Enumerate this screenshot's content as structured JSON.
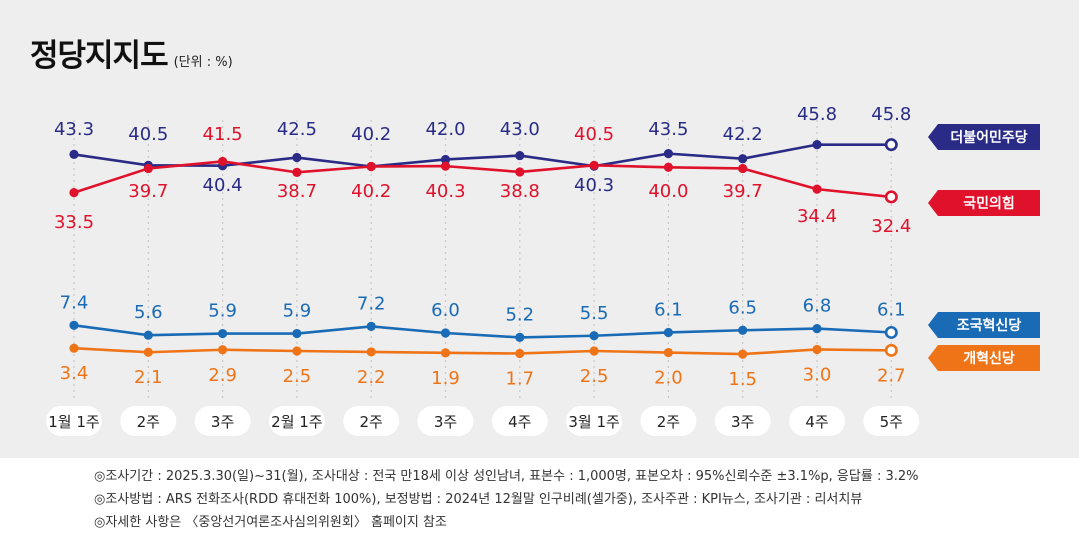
{
  "title": "정당지지도",
  "unit_note": "(단위 : %)",
  "notes": [
    "◎조사기간 : 2025.3.30(일)~31(월), 조사대상 : 전국 만18세 이상 성인남녀, 표본수 : 1,000명, 표본오차 : 95%신뢰수준 ±3.1%p, 응답률 : 3.2%",
    "◎조사방법 : ARS 전화조사(RDD 휴대전화 100%), 보정방법 : 2024년 12월말 인구비례(셀가중), 조사주관 : KPI뉴스, 조사기관 : 리서치뷰",
    "◎자세한 사항은 〈중앙선거여론조사심의위원회〉 홈페이지 참조"
  ],
  "chart_data": {
    "type": "line",
    "title": "정당지지도",
    "categories": [
      "1월 1주",
      "2주",
      "3주",
      "2월 1주",
      "2주",
      "3주",
      "4주",
      "3월 1주",
      "2주",
      "3주",
      "4주",
      "5주"
    ],
    "legend_placement": "right",
    "grid": false,
    "series": [
      {
        "name": "더불어민주당",
        "color": "#2a2b86",
        "values": [
          43.3,
          40.5,
          40.4,
          42.5,
          40.2,
          42.0,
          43.0,
          40.3,
          43.5,
          42.2,
          45.8,
          45.8
        ],
        "labels": [
          "43.3",
          "40.5",
          "40.4",
          "42.5",
          "40.2",
          "42.0",
          "43.0",
          "40.3",
          "43.5",
          "42.2",
          "45.8",
          "45.8"
        ]
      },
      {
        "name": "국민의힘",
        "color": "#e0112b",
        "values": [
          33.5,
          39.7,
          41.5,
          38.7,
          40.2,
          40.3,
          38.8,
          40.5,
          40.0,
          39.7,
          34.4,
          32.4
        ],
        "labels": [
          "33.5",
          "39.7",
          "41.5",
          "38.7",
          "40.2",
          "40.3",
          "38.8",
          "40.5",
          "40.0",
          "39.7",
          "34.4",
          "32.4"
        ]
      },
      {
        "name": "조국혁신당",
        "color": "#1a6bb5",
        "values": [
          7.4,
          5.6,
          5.9,
          5.9,
          7.2,
          6.0,
          5.2,
          5.5,
          6.1,
          6.5,
          6.8,
          6.1
        ],
        "labels": [
          "7.4",
          "5.6",
          "5.9",
          "5.9",
          "7.2",
          "6.0",
          "5.2",
          "5.5",
          "6.1",
          "6.5",
          "6.8",
          "6.1"
        ]
      },
      {
        "name": "개혁신당",
        "color": "#ef7418",
        "values": [
          3.4,
          2.1,
          2.9,
          2.5,
          2.2,
          1.9,
          1.7,
          2.5,
          2.0,
          1.5,
          3.0,
          2.7
        ],
        "labels": [
          "3.4",
          "2.1",
          "2.9",
          "2.5",
          "2.2",
          "1.9",
          "1.7",
          "2.5",
          "2.0",
          "1.5",
          "3.0",
          "2.7"
        ]
      }
    ]
  }
}
